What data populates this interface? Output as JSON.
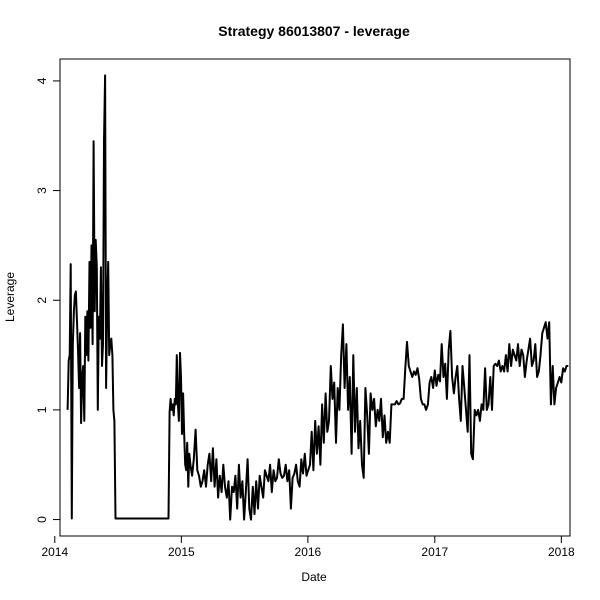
{
  "chart_data": {
    "type": "line",
    "title": "Strategy 86013807 - leverage",
    "xlabel": "Date",
    "ylabel": "Leverage",
    "xlim": [
      "2014-01-16",
      "2018-01-26"
    ],
    "ylim": [
      -0.15,
      4.2
    ],
    "x_ticks": [
      "2014",
      "2015",
      "2016",
      "2017",
      "2018"
    ],
    "y_ticks": [
      "0",
      "1",
      "2",
      "3",
      "4"
    ],
    "grid": false,
    "legend": "none",
    "line_color": "#000000",
    "series": [
      {
        "x": [
          "2014-02-07",
          "2014-02-10",
          "2014-02-13",
          "2014-02-16",
          "2014-02-19",
          "2014-02-22",
          "2014-02-25",
          "2014-02-28",
          "2014-03-03",
          "2014-03-06",
          "2014-03-09",
          "2014-03-12",
          "2014-03-15",
          "2014-03-18",
          "2014-03-21",
          "2014-03-24",
          "2014-03-27",
          "2014-03-30",
          "2014-04-02",
          "2014-04-05",
          "2014-04-08",
          "2014-04-11",
          "2014-04-14",
          "2014-04-17",
          "2014-04-20",
          "2014-04-23",
          "2014-04-26",
          "2014-04-29",
          "2014-05-02",
          "2014-05-05",
          "2014-05-08",
          "2014-05-11",
          "2014-05-14",
          "2014-05-17",
          "2014-05-20",
          "2014-05-23",
          "2014-05-26",
          "2014-05-29",
          "2014-06-01",
          "2014-06-04",
          "2014-06-07",
          "2014-06-10",
          "2014-06-13",
          "2014-06-16",
          "2014-06-19",
          "2014-06-22",
          "2014-06-25",
          "2014-06-28",
          "2014-07-01",
          "2014-11-25",
          "2014-11-28",
          "2014-12-01",
          "2014-12-04",
          "2014-12-07",
          "2014-12-10",
          "2014-12-13",
          "2014-12-16",
          "2014-12-19",
          "2014-12-22",
          "2014-12-25",
          "2014-12-28",
          "2014-12-31",
          "2015-01-03",
          "2015-01-06",
          "2015-01-09",
          "2015-01-12",
          "2015-01-15",
          "2015-01-18",
          "2015-01-21",
          "2015-01-24",
          "2015-01-27",
          "2015-02-01",
          "2015-02-06",
          "2015-02-11",
          "2015-02-16",
          "2015-02-21",
          "2015-02-26",
          "2015-03-03",
          "2015-03-08",
          "2015-03-13",
          "2015-03-18",
          "2015-03-23",
          "2015-03-28",
          "2015-04-02",
          "2015-04-07",
          "2015-04-12",
          "2015-04-17",
          "2015-04-22",
          "2015-04-27",
          "2015-05-02",
          "2015-05-07",
          "2015-05-12",
          "2015-05-17",
          "2015-05-22",
          "2015-05-27",
          "2015-06-01",
          "2015-06-06",
          "2015-06-11",
          "2015-06-16",
          "2015-06-21",
          "2015-06-26",
          "2015-07-01",
          "2015-07-06",
          "2015-07-11",
          "2015-07-16",
          "2015-07-21",
          "2015-07-26",
          "2015-07-31",
          "2015-08-05",
          "2015-08-10",
          "2015-08-15",
          "2015-08-20",
          "2015-08-25",
          "2015-08-30",
          "2015-09-04",
          "2015-09-09",
          "2015-09-14",
          "2015-09-19",
          "2015-09-24",
          "2015-09-29",
          "2015-10-04",
          "2015-10-09",
          "2015-10-14",
          "2015-10-19",
          "2015-10-24",
          "2015-10-29",
          "2015-11-03",
          "2015-11-08",
          "2015-11-13",
          "2015-11-18",
          "2015-11-23",
          "2015-11-28",
          "2015-12-03",
          "2015-12-08",
          "2015-12-13",
          "2015-12-18",
          "2015-12-23",
          "2015-12-28",
          "2016-01-02",
          "2016-01-07",
          "2016-01-12",
          "2016-01-17",
          "2016-01-22",
          "2016-01-27",
          "2016-02-01",
          "2016-02-06",
          "2016-02-11",
          "2016-02-16",
          "2016-02-21",
          "2016-02-26",
          "2016-03-02",
          "2016-03-07",
          "2016-03-12",
          "2016-03-17",
          "2016-03-22",
          "2016-03-27",
          "2016-04-01",
          "2016-04-06",
          "2016-04-11",
          "2016-04-16",
          "2016-04-21",
          "2016-04-26",
          "2016-05-01",
          "2016-05-06",
          "2016-05-11",
          "2016-05-16",
          "2016-05-21",
          "2016-05-26",
          "2016-05-31",
          "2016-06-05",
          "2016-06-10",
          "2016-06-15",
          "2016-06-20",
          "2016-06-25",
          "2016-06-30",
          "2016-07-05",
          "2016-07-10",
          "2016-07-15",
          "2016-07-20",
          "2016-07-25",
          "2016-07-30",
          "2016-08-04",
          "2016-08-09",
          "2016-08-14",
          "2016-08-19",
          "2016-08-24",
          "2016-08-29",
          "2016-09-03",
          "2016-09-08",
          "2016-09-13",
          "2016-09-18",
          "2016-09-23",
          "2016-09-28",
          "2016-10-03",
          "2016-10-08",
          "2016-10-13",
          "2016-10-18",
          "2016-10-23",
          "2016-10-28",
          "2016-11-02",
          "2016-11-07",
          "2016-11-12",
          "2016-11-17",
          "2016-11-22",
          "2016-11-27",
          "2016-12-02",
          "2016-12-07",
          "2016-12-12",
          "2016-12-17",
          "2016-12-22",
          "2016-12-27",
          "2017-01-01",
          "2017-01-06",
          "2017-01-11",
          "2017-01-16",
          "2017-01-21",
          "2017-01-26",
          "2017-01-31",
          "2017-02-05",
          "2017-02-10",
          "2017-02-15",
          "2017-02-20",
          "2017-02-25",
          "2017-03-02",
          "2017-03-07",
          "2017-03-12",
          "2017-03-17",
          "2017-03-22",
          "2017-03-27",
          "2017-04-01",
          "2017-04-06",
          "2017-04-11",
          "2017-04-16",
          "2017-04-21",
          "2017-04-26",
          "2017-05-01",
          "2017-05-06",
          "2017-05-11",
          "2017-05-16",
          "2017-05-21",
          "2017-05-26",
          "2017-05-31",
          "2017-06-05",
          "2017-06-10",
          "2017-06-15",
          "2017-06-20",
          "2017-06-25",
          "2017-06-30",
          "2017-07-05",
          "2017-07-10",
          "2017-07-15",
          "2017-07-20",
          "2017-07-25",
          "2017-07-30",
          "2017-08-04",
          "2017-08-09",
          "2017-08-14",
          "2017-08-19",
          "2017-08-24",
          "2017-08-29",
          "2017-09-03",
          "2017-09-08",
          "2017-09-13",
          "2017-09-18",
          "2017-09-23",
          "2017-09-28",
          "2017-10-03",
          "2017-10-08",
          "2017-10-13",
          "2017-10-18",
          "2017-10-23",
          "2017-10-28",
          "2017-11-02",
          "2017-11-07",
          "2017-11-12",
          "2017-11-17",
          "2017-11-22",
          "2017-11-27",
          "2017-12-02",
          "2017-12-07",
          "2017-12-12",
          "2017-12-17",
          "2017-12-22",
          "2017-12-27",
          "2018-01-01",
          "2018-01-06",
          "2018-01-11",
          "2018-01-16",
          "2018-01-21"
        ],
        "y": [
          1.0,
          1.45,
          1.5,
          2.33,
          0.01,
          1.6,
          1.9,
          2.05,
          2.08,
          1.8,
          1.55,
          1.2,
          1.7,
          0.88,
          1.3,
          1.4,
          0.9,
          1.85,
          1.5,
          1.9,
          1.45,
          2.35,
          1.75,
          2.5,
          1.6,
          3.45,
          1.9,
          2.55,
          2.3,
          1.0,
          1.85,
          1.65,
          2.3,
          1.4,
          1.6,
          3.45,
          4.05,
          1.2,
          1.95,
          2.35,
          1.5,
          1.6,
          1.65,
          1.5,
          1.0,
          0.9,
          0.01,
          0.01,
          0.01,
          0.01,
          0.98,
          1.1,
          1.0,
          1.05,
          0.95,
          1.1,
          1.05,
          1.5,
          1.05,
          0.9,
          1.52,
          1.3,
          0.78,
          1.15,
          0.8,
          0.5,
          0.45,
          0.7,
          0.3,
          0.6,
          0.5,
          0.4,
          0.55,
          0.82,
          0.45,
          0.4,
          0.3,
          0.35,
          0.45,
          0.3,
          0.5,
          0.6,
          0.35,
          0.65,
          0.3,
          0.55,
          0.2,
          0.4,
          0.25,
          0.5,
          0.3,
          0.2,
          0.35,
          0.0,
          0.3,
          0.25,
          0.4,
          0.1,
          0.5,
          0.2,
          0.35,
          0.0,
          0.25,
          0.55,
          0.1,
          0.0,
          0.3,
          0.05,
          0.35,
          0.1,
          0.4,
          0.3,
          0.2,
          0.45,
          0.4,
          0.35,
          0.5,
          0.25,
          0.45,
          0.35,
          0.38,
          0.55,
          0.42,
          0.38,
          0.4,
          0.5,
          0.35,
          0.45,
          0.1,
          0.38,
          0.42,
          0.5,
          0.35,
          0.3,
          0.55,
          0.42,
          0.6,
          0.4,
          0.45,
          0.5,
          0.8,
          0.45,
          0.9,
          0.6,
          0.85,
          0.5,
          1.05,
          0.7,
          1.15,
          0.8,
          0.9,
          1.4,
          1.1,
          1.25,
          0.7,
          1.2,
          1.0,
          1.5,
          1.78,
          1.2,
          1.6,
          1.0,
          1.3,
          0.6,
          1.5,
          0.8,
          1.2,
          0.65,
          0.9,
          0.5,
          0.38,
          1.2,
          0.95,
          0.6,
          1.15,
          1.0,
          1.1,
          0.85,
          1.0,
          0.9,
          1.1,
          0.75,
          0.95,
          0.7,
          0.8,
          0.7,
          1.05,
          1.05,
          1.05,
          1.08,
          1.05,
          1.06,
          1.1,
          1.1,
          1.38,
          1.62,
          1.4,
          1.35,
          1.3,
          1.35,
          1.32,
          1.38,
          1.28,
          1.1,
          1.05,
          1.05,
          1.0,
          1.05,
          1.25,
          1.3,
          1.2,
          1.36,
          1.22,
          1.32,
          1.26,
          1.6,
          1.3,
          1.42,
          1.1,
          1.55,
          1.72,
          1.3,
          1.15,
          1.3,
          1.4,
          1.1,
          0.9,
          1.4,
          1.2,
          1.0,
          0.8,
          1.5,
          0.6,
          0.55,
          1.0,
          0.95,
          1.0,
          0.9,
          1.05,
          1.0,
          1.38,
          1.0,
          1.05,
          1.3,
          1.0,
          1.4,
          1.42,
          1.4,
          1.45,
          1.35,
          1.4,
          1.35,
          1.5,
          1.35,
          1.6,
          1.4,
          1.55,
          1.5,
          1.45,
          1.6,
          1.4,
          1.55,
          1.5,
          1.3,
          1.45,
          1.55,
          1.65,
          1.4,
          1.45,
          1.6,
          1.3,
          1.35,
          1.5,
          1.7,
          1.75,
          1.8,
          1.65,
          1.8,
          1.05,
          1.4,
          1.05,
          1.2,
          1.25,
          1.3,
          1.25,
          1.38,
          1.35,
          1.4,
          1.4
        ]
      }
    ]
  }
}
